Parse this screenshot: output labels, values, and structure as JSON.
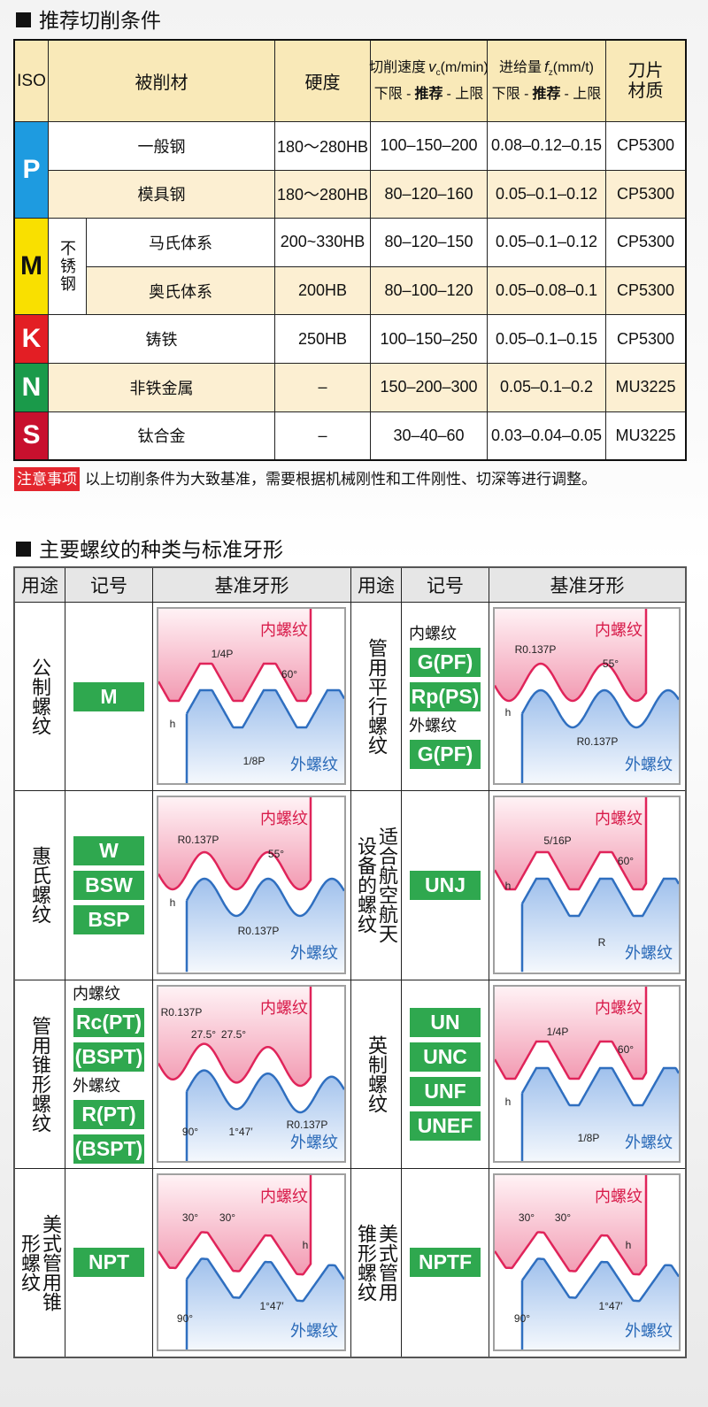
{
  "section1": {
    "title": "推荐切削条件",
    "header": {
      "iso": "ISO",
      "material": "被削材",
      "hardness": "硬度",
      "speed": {
        "label": "切削速度",
        "symbol": "v",
        "sub": "c",
        "unit": "(m/min)"
      },
      "feed": {
        "label": "进给量",
        "symbol": "f",
        "sub": "z",
        "unit": "(mm/t)"
      },
      "range": [
        "下限 -",
        "推荐",
        "- 上限"
      ],
      "grade": "刀片材质"
    },
    "groups": [
      {
        "iso": "P",
        "color": "#1e9be0",
        "text_color": "#ffffff",
        "rows": [
          {
            "material": "一般钢",
            "hardness": "180～280HB",
            "speed": "100–150–200",
            "feed": "0.08–0.12–0.15",
            "grade": "CP5300"
          },
          {
            "material": "模具钢",
            "hardness": "180～280HB",
            "speed": "80–120–160",
            "feed": "0.05–0.1–0.12",
            "grade": "CP5300"
          }
        ]
      },
      {
        "iso": "M",
        "color": "#f9e000",
        "text_color": "#111111",
        "family": "不锈钢",
        "rows": [
          {
            "material": "马氏体系",
            "hardness": "200~330HB",
            "speed": "80–120–150",
            "feed": "0.05–0.1–0.12",
            "grade": "CP5300"
          },
          {
            "material": "奥氏体系",
            "hardness": "200HB",
            "speed": "80–100–120",
            "feed": "0.05–0.08–0.1",
            "grade": "CP5300"
          }
        ]
      },
      {
        "iso": "K",
        "color": "#e31e24",
        "text_color": "#ffffff",
        "rows": [
          {
            "material": "铸铁",
            "hardness": "250HB",
            "speed": "100–150–250",
            "feed": "0.05–0.1–0.15",
            "grade": "CP5300"
          }
        ]
      },
      {
        "iso": "N",
        "color": "#1a9a4a",
        "text_color": "#ffffff",
        "rows": [
          {
            "material": "非铁金属",
            "hardness": "–",
            "speed": "150–200–300",
            "feed": "0.05–0.1–0.2",
            "grade": "MU3225"
          }
        ]
      },
      {
        "iso": "S",
        "color": "#c8102e",
        "text_color": "#ffffff",
        "rows": [
          {
            "material": "钛合金",
            "hardness": "–",
            "speed": "30–40–60",
            "feed": "0.03–0.04–0.05",
            "grade": "MU3225"
          }
        ]
      }
    ],
    "note": {
      "tag": "注意事项",
      "text": "以上切削条件为大致基准，需要根据机械刚性和工件刚性、切深等进行调整。"
    }
  },
  "section2": {
    "title": "主要螺纹的种类与标准牙形",
    "header": [
      "用途",
      "记号",
      "基准牙形",
      "用途",
      "记号",
      "基准牙形"
    ],
    "threads": [
      {
        "use": "公制螺纹",
        "codes": [
          {
            "kind": "badge",
            "text": "M"
          }
        ],
        "profile": "triangle",
        "diagram": {
          "inner": "内螺纹",
          "outer": "外螺纹",
          "notes": [
            "1/4P",
            "60°",
            "1/8P",
            "h"
          ]
        }
      },
      {
        "use": "惠氏螺纹",
        "codes": [
          {
            "kind": "badge",
            "text": "W"
          },
          {
            "kind": "badge",
            "text": "BSW"
          },
          {
            "kind": "badge",
            "text": "BSP"
          }
        ],
        "profile": "round",
        "diagram": {
          "inner": "内螺纹",
          "outer": "外螺纹",
          "notes": [
            "R0.137P",
            "55°",
            "R0.137P",
            "h"
          ]
        }
      },
      {
        "use": "管用锥形螺纹",
        "codes": [
          {
            "kind": "caption",
            "text": "内螺纹"
          },
          {
            "kind": "badge",
            "text": "Rc(PT)"
          },
          {
            "kind": "badge",
            "text": "(BSPT)"
          },
          {
            "kind": "caption",
            "text": "外螺纹"
          },
          {
            "kind": "badge",
            "text": "R(PT)"
          },
          {
            "kind": "badge",
            "text": "(BSPT)"
          }
        ],
        "profile": "round",
        "diagram": {
          "inner": "内螺纹",
          "outer": "外螺纹",
          "notes": [
            "R0.137P",
            "27.5°",
            "27.5°",
            "90°",
            "1°47′",
            "R0.137P"
          ]
        }
      },
      {
        "use": "美式管用锥形螺纹",
        "codes": [
          {
            "kind": "badge",
            "text": "NPT"
          }
        ],
        "profile": "sharp",
        "diagram": {
          "inner": "内螺纹",
          "outer": "外螺纹",
          "notes": [
            "30°",
            "30°",
            "h",
            "1°47′",
            "90°"
          ]
        }
      },
      {
        "use": "管用平行螺纹",
        "codes": [
          {
            "kind": "caption",
            "text": "内螺纹"
          },
          {
            "kind": "badge",
            "text": "G(PF)"
          },
          {
            "kind": "badge",
            "text": "Rp(PS)"
          },
          {
            "kind": "caption",
            "text": "外螺纹"
          },
          {
            "kind": "badge",
            "text": "G(PF)"
          }
        ],
        "profile": "round",
        "diagram": {
          "inner": "内螺纹",
          "outer": "外螺纹",
          "notes": [
            "R0.137P",
            "55°",
            "h",
            "R0.137P"
          ]
        }
      },
      {
        "use": "适合航空航天设备的螺纹",
        "codes": [
          {
            "kind": "badge",
            "text": "UNJ"
          }
        ],
        "profile": "triangle",
        "diagram": {
          "inner": "内螺纹",
          "outer": "外螺纹",
          "notes": [
            "5/16P",
            "60°",
            "h",
            "R"
          ]
        }
      },
      {
        "use": "英制螺纹",
        "codes": [
          {
            "kind": "badge",
            "text": "UN"
          },
          {
            "kind": "badge",
            "text": "UNC"
          },
          {
            "kind": "badge",
            "text": "UNF"
          },
          {
            "kind": "badge",
            "text": "UNEF"
          }
        ],
        "profile": "triangle",
        "diagram": {
          "inner": "内螺纹",
          "outer": "外螺纹",
          "notes": [
            "1/4P",
            "60°",
            "h",
            "1/8P"
          ]
        }
      },
      {
        "use": "美式管用锥形螺纹",
        "codes": [
          {
            "kind": "badge",
            "text": "NPTF"
          }
        ],
        "profile": "sharp",
        "diagram": {
          "inner": "内螺纹",
          "outer": "外螺纹",
          "notes": [
            "30°",
            "30°",
            "h",
            "90°",
            "1°47′"
          ]
        }
      }
    ]
  }
}
